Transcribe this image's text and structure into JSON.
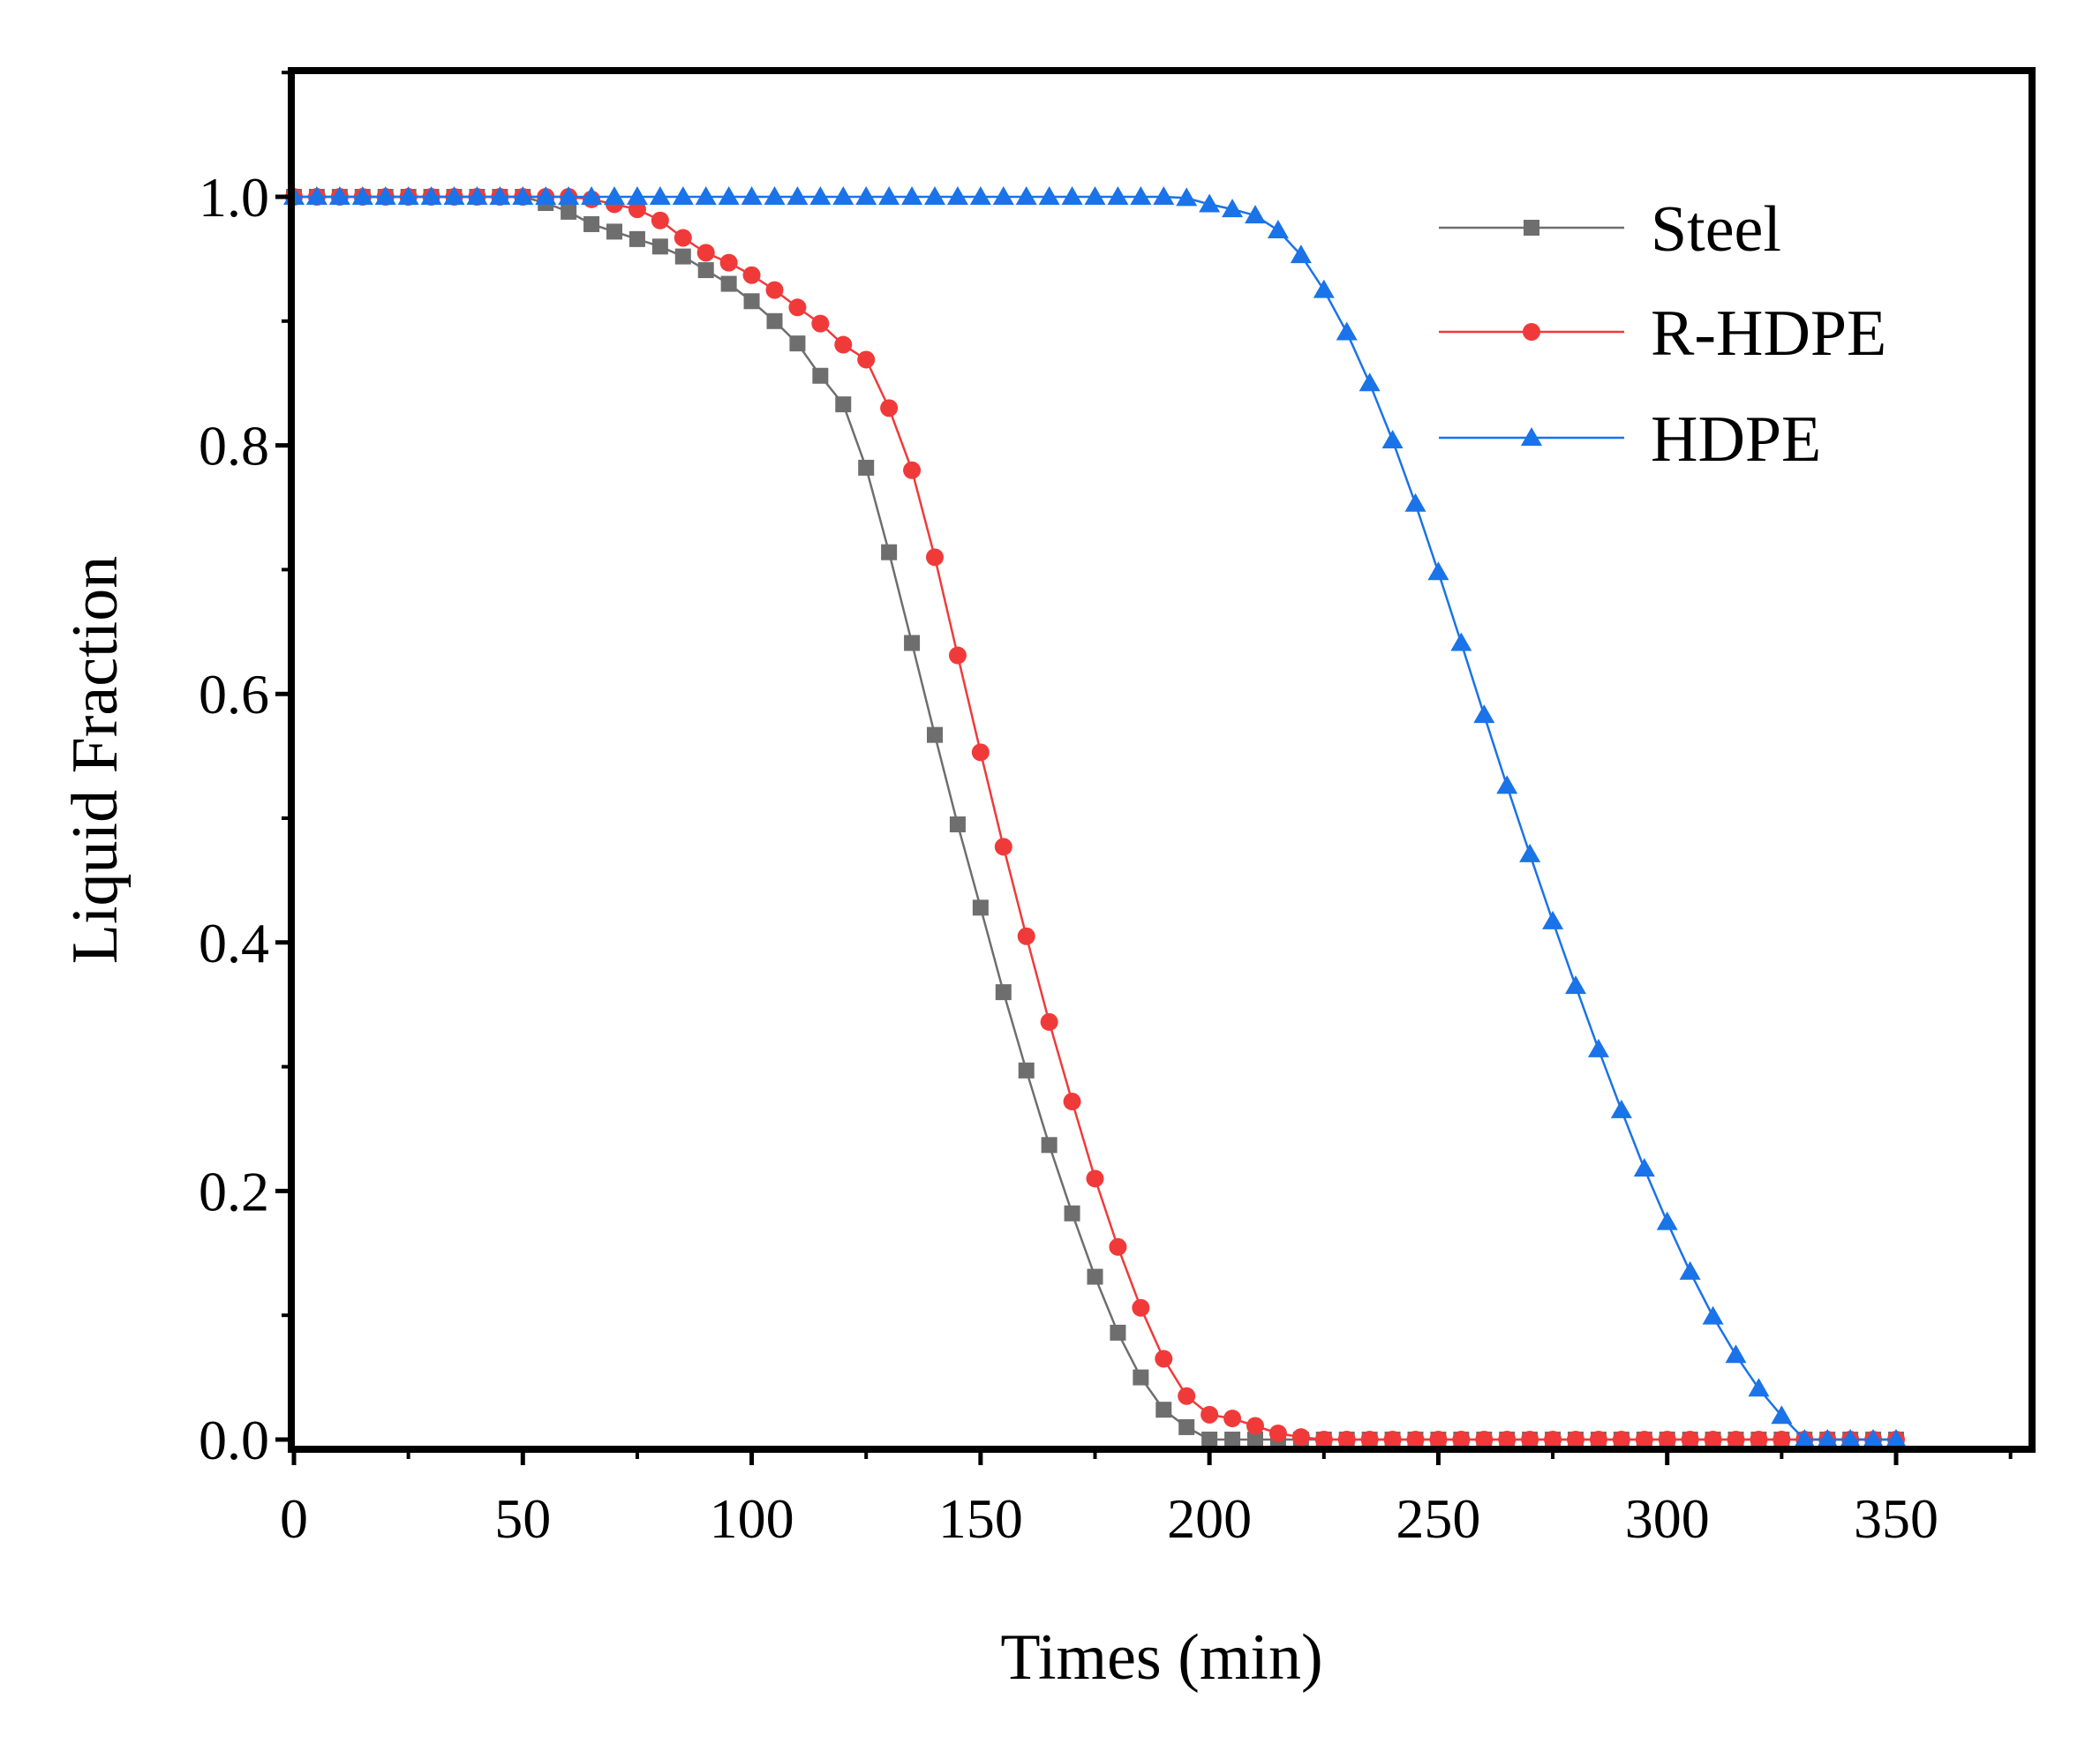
{
  "chart_data": {
    "type": "line",
    "title": "",
    "xlabel": "Times (min)",
    "ylabel": "Liquid Fraction",
    "xlim": [
      0,
      380
    ],
    "ylim": [
      0,
      1.1
    ],
    "xticks": [
      0,
      50,
      100,
      150,
      200,
      250,
      300,
      350
    ],
    "xtick_labels": [
      "0",
      "50",
      "100",
      "150",
      "200",
      "250",
      "300",
      "350"
    ],
    "yticks": [
      0,
      0.2,
      0.4,
      0.6,
      0.8,
      1.0
    ],
    "ytick_labels": [
      "0.0",
      "0.2",
      "0.4",
      "0.6",
      "0.8",
      "1.0"
    ],
    "grid": false,
    "legend_position": "top-right",
    "x": [
      0,
      5,
      10,
      15,
      20,
      25,
      30,
      35,
      40,
      45,
      50,
      55,
      60,
      65,
      70,
      75,
      80,
      85,
      90,
      95,
      100,
      105,
      110,
      115,
      120,
      125,
      130,
      135,
      140,
      145,
      150,
      155,
      160,
      165,
      170,
      175,
      180,
      185,
      190,
      195,
      200,
      205,
      210,
      215,
      220,
      225,
      230,
      235,
      240,
      245,
      250,
      255,
      260,
      265,
      270,
      275,
      280,
      285,
      290,
      295,
      300,
      305,
      310,
      315,
      320,
      325,
      330,
      335,
      340,
      345,
      350
    ],
    "series": [
      {
        "name": "Steel",
        "color": "#6e6e6e",
        "marker": "square",
        "values": [
          1.0,
          1.0,
          1.0,
          1.0,
          1.0,
          1.0,
          1.0,
          1.0,
          1.0,
          1.0,
          1.0,
          0.995,
          0.988,
          0.978,
          0.972,
          0.966,
          0.96,
          0.952,
          0.941,
          0.93,
          0.916,
          0.9,
          0.882,
          0.856,
          0.833,
          0.782,
          0.714,
          0.641,
          0.567,
          0.495,
          0.428,
          0.36,
          0.297,
          0.237,
          0.182,
          0.131,
          0.086,
          0.05,
          0.024,
          0.01,
          0.0,
          0.0,
          0.0,
          0.0,
          0.0,
          0.0,
          0.0,
          0.0,
          0.0,
          0.0,
          0.0,
          0.0,
          0.0,
          0.0,
          0.0,
          0.0,
          0.0,
          0.0,
          0.0,
          0.0,
          0.0,
          0.0,
          0.0,
          0.0,
          0.0,
          0.0,
          0.0,
          0.0,
          0.0,
          0.0,
          0.0
        ]
      },
      {
        "name": "R-HDPE",
        "color": "#f03a3a",
        "marker": "circle",
        "values": [
          1.0,
          1.0,
          1.0,
          1.0,
          1.0,
          1.0,
          1.0,
          1.0,
          1.0,
          1.0,
          1.0,
          1.0,
          1.0,
          0.998,
          0.994,
          0.99,
          0.981,
          0.967,
          0.955,
          0.947,
          0.937,
          0.925,
          0.911,
          0.898,
          0.881,
          0.869,
          0.83,
          0.78,
          0.71,
          0.631,
          0.553,
          0.477,
          0.405,
          0.336,
          0.272,
          0.21,
          0.155,
          0.106,
          0.065,
          0.035,
          0.02,
          0.017,
          0.011,
          0.005,
          0.002,
          0.0,
          0.0,
          0.0,
          0.0,
          0.0,
          0.0,
          0.0,
          0.0,
          0.0,
          0.0,
          0.0,
          0.0,
          0.0,
          0.0,
          0.0,
          0.0,
          0.0,
          0.0,
          0.0,
          0.0,
          0.0,
          0.0,
          0.0,
          0.0,
          0.0,
          0.0
        ]
      },
      {
        "name": "HDPE",
        "color": "#1a73e8",
        "marker": "triangle",
        "values": [
          1.0,
          1.0,
          1.0,
          1.0,
          1.0,
          1.0,
          1.0,
          1.0,
          1.0,
          1.0,
          1.0,
          1.0,
          1.0,
          1.0,
          1.0,
          1.0,
          1.0,
          1.0,
          1.0,
          1.0,
          1.0,
          1.0,
          1.0,
          1.0,
          1.0,
          1.0,
          1.0,
          1.0,
          1.0,
          1.0,
          1.0,
          1.0,
          1.0,
          1.0,
          1.0,
          1.0,
          1.0,
          1.0,
          1.0,
          0.999,
          0.994,
          0.99,
          0.985,
          0.973,
          0.953,
          0.925,
          0.891,
          0.85,
          0.804,
          0.753,
          0.698,
          0.641,
          0.583,
          0.526,
          0.471,
          0.417,
          0.365,
          0.314,
          0.265,
          0.218,
          0.175,
          0.135,
          0.099,
          0.068,
          0.041,
          0.019,
          0.0,
          0.0,
          0.0,
          0.0,
          0.0
        ]
      }
    ]
  }
}
